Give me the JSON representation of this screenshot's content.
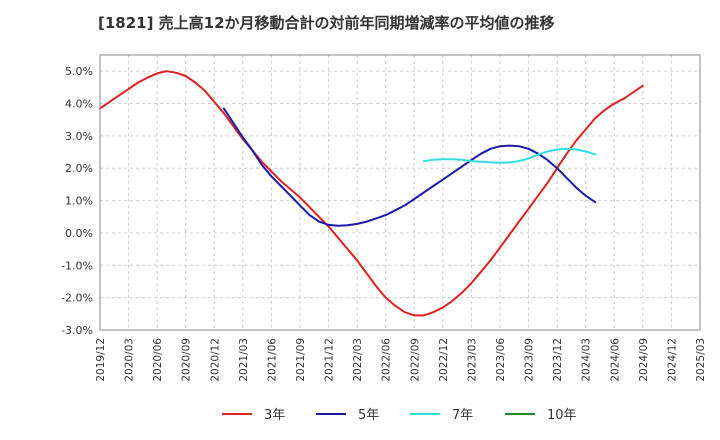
{
  "chart_data": {
    "type": "line",
    "title": "[1821]  売上高12か月移動合計の対前年同期増減率の平均値の推移",
    "xlabel": "",
    "ylabel": "",
    "ylim": [
      -3.0,
      5.5
    ],
    "y_ticks": [
      "5.0%",
      "4.0%",
      "3.0%",
      "2.0%",
      "1.0%",
      "0.0%",
      "-1.0%",
      "-2.0%",
      "-3.0%"
    ],
    "y_tick_values": [
      5.0,
      4.0,
      3.0,
      2.0,
      1.0,
      0.0,
      -1.0,
      -2.0,
      -3.0
    ],
    "x_ticks": [
      "2019/12",
      "2020/03",
      "2020/06",
      "2020/09",
      "2020/12",
      "2021/03",
      "2021/06",
      "2021/09",
      "2021/12",
      "2022/03",
      "2022/06",
      "2022/09",
      "2022/12",
      "2023/03",
      "2023/06",
      "2023/09",
      "2023/12",
      "2024/03",
      "2024/06",
      "2024/09",
      "2024/12",
      "2025/03"
    ],
    "grid": true,
    "legend_position": "bottom",
    "series": [
      {
        "name": "3年",
        "color": "#dd2222",
        "points": [
          [
            "2019/12",
            3.85
          ],
          [
            "2020/01",
            4.05
          ],
          [
            "2020/02",
            4.25
          ],
          [
            "2020/03",
            4.45
          ],
          [
            "2020/04",
            4.65
          ],
          [
            "2020/05",
            4.8
          ],
          [
            "2020/06",
            4.93
          ],
          [
            "2020/07",
            5.0
          ],
          [
            "2020/08",
            4.95
          ],
          [
            "2020/09",
            4.85
          ],
          [
            "2020/10",
            4.65
          ],
          [
            "2020/11",
            4.4
          ],
          [
            "2020/12",
            4.05
          ],
          [
            "2021/01",
            3.7
          ],
          [
            "2021/02",
            3.3
          ],
          [
            "2021/03",
            2.9
          ],
          [
            "2021/04",
            2.55
          ],
          [
            "2021/05",
            2.2
          ],
          [
            "2021/06",
            1.9
          ],
          [
            "2021/07",
            1.6
          ],
          [
            "2021/08",
            1.35
          ],
          [
            "2021/09",
            1.1
          ],
          [
            "2021/10",
            0.8
          ],
          [
            "2021/11",
            0.5
          ],
          [
            "2021/12",
            0.2
          ],
          [
            "2022/01",
            -0.15
          ],
          [
            "2022/02",
            -0.5
          ],
          [
            "2022/03",
            -0.85
          ],
          [
            "2022/04",
            -1.25
          ],
          [
            "2022/05",
            -1.65
          ],
          [
            "2022/06",
            -2.0
          ],
          [
            "2022/07",
            -2.25
          ],
          [
            "2022/08",
            -2.45
          ],
          [
            "2022/09",
            -2.55
          ],
          [
            "2022/10",
            -2.55
          ],
          [
            "2022/11",
            -2.45
          ],
          [
            "2022/12",
            -2.3
          ],
          [
            "2023/01",
            -2.1
          ],
          [
            "2023/02",
            -1.85
          ],
          [
            "2023/03",
            -1.55
          ],
          [
            "2023/04",
            -1.2
          ],
          [
            "2023/05",
            -0.85
          ],
          [
            "2023/06",
            -0.45
          ],
          [
            "2023/07",
            -0.05
          ],
          [
            "2023/08",
            0.35
          ],
          [
            "2023/09",
            0.75
          ],
          [
            "2023/10",
            1.15
          ],
          [
            "2023/11",
            1.55
          ],
          [
            "2023/12",
            2.0
          ],
          [
            "2024/01",
            2.45
          ],
          [
            "2024/02",
            2.85
          ],
          [
            "2024/03",
            3.2
          ],
          [
            "2024/04",
            3.55
          ],
          [
            "2024/05",
            3.8
          ],
          [
            "2024/06",
            4.0
          ],
          [
            "2024/07",
            4.15
          ],
          [
            "2024/08",
            4.35
          ],
          [
            "2024/09",
            4.55
          ]
        ]
      },
      {
        "name": "5年",
        "color": "#1a1aaa",
        "points": [
          [
            "2021/01",
            3.85
          ],
          [
            "2021/02",
            3.4
          ],
          [
            "2021/03",
            2.95
          ],
          [
            "2021/04",
            2.55
          ],
          [
            "2021/05",
            2.1
          ],
          [
            "2021/06",
            1.75
          ],
          [
            "2021/07",
            1.45
          ],
          [
            "2021/08",
            1.15
          ],
          [
            "2021/09",
            0.85
          ],
          [
            "2021/10",
            0.55
          ],
          [
            "2021/11",
            0.35
          ],
          [
            "2021/12",
            0.25
          ],
          [
            "2022/01",
            0.22
          ],
          [
            "2022/02",
            0.24
          ],
          [
            "2022/03",
            0.28
          ],
          [
            "2022/04",
            0.35
          ],
          [
            "2022/05",
            0.45
          ],
          [
            "2022/06",
            0.55
          ],
          [
            "2022/07",
            0.7
          ],
          [
            "2022/08",
            0.85
          ],
          [
            "2022/09",
            1.05
          ],
          [
            "2022/10",
            1.25
          ],
          [
            "2022/11",
            1.45
          ],
          [
            "2022/12",
            1.65
          ],
          [
            "2023/01",
            1.85
          ],
          [
            "2023/02",
            2.05
          ],
          [
            "2023/03",
            2.25
          ],
          [
            "2023/04",
            2.45
          ],
          [
            "2023/05",
            2.6
          ],
          [
            "2023/06",
            2.68
          ],
          [
            "2023/07",
            2.7
          ],
          [
            "2023/08",
            2.68
          ],
          [
            "2023/09",
            2.6
          ],
          [
            "2023/10",
            2.45
          ],
          [
            "2023/11",
            2.25
          ],
          [
            "2023/12",
            2.0
          ],
          [
            "2024/01",
            1.7
          ],
          [
            "2024/02",
            1.4
          ],
          [
            "2024/03",
            1.15
          ],
          [
            "2024/04",
            0.95
          ]
        ]
      },
      {
        "name": "7年",
        "color": "#33dddd",
        "points": [
          [
            "2022/10",
            2.22
          ],
          [
            "2022/11",
            2.26
          ],
          [
            "2022/12",
            2.28
          ],
          [
            "2023/01",
            2.28
          ],
          [
            "2023/02",
            2.26
          ],
          [
            "2023/03",
            2.22
          ],
          [
            "2023/04",
            2.2
          ],
          [
            "2023/05",
            2.18
          ],
          [
            "2023/06",
            2.17
          ],
          [
            "2023/07",
            2.18
          ],
          [
            "2023/08",
            2.22
          ],
          [
            "2023/09",
            2.3
          ],
          [
            "2023/10",
            2.42
          ],
          [
            "2023/11",
            2.52
          ],
          [
            "2023/12",
            2.58
          ],
          [
            "2024/01",
            2.6
          ],
          [
            "2024/02",
            2.58
          ],
          [
            "2024/03",
            2.52
          ],
          [
            "2024/04",
            2.43
          ]
        ]
      },
      {
        "name": "10年",
        "color": "#228822",
        "points": []
      }
    ]
  }
}
